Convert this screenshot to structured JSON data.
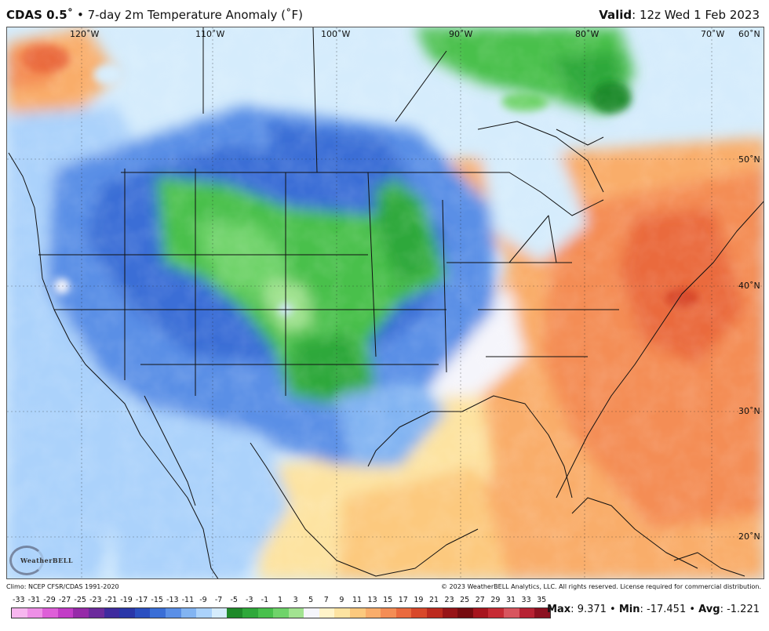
{
  "header": {
    "model": "CDAS 0.5˚",
    "bullet": "•",
    "product": "7-day 2m Temperature Anomaly (˚F)",
    "valid_label": "Valid",
    "valid_value": ": 12z Wed 1 Feb 2023"
  },
  "graticule": {
    "longitudes": [
      "120˚W",
      "110˚W",
      "100˚W",
      "90˚W",
      "80˚W",
      "70˚W",
      "60˚N"
    ],
    "latitudes": [
      "50˚N",
      "40˚N",
      "30˚N",
      "20˚N"
    ]
  },
  "logo_text": "WeatherBELL",
  "footer": {
    "climo": "Climo: NCEP CFSR/CDAS 1991-2020",
    "copyright": "© 2023 WeatherBELL Analytics, LLC. All rights reserved. License required for commercial distribution."
  },
  "scale": {
    "ticks": [
      "-33",
      "-31",
      "-29",
      "-27",
      "-25",
      "-23",
      "-21",
      "-19",
      "-17",
      "-15",
      "-13",
      "-11",
      "-9",
      "-7",
      "-5",
      "-3",
      "-1",
      "1",
      "3",
      "5",
      "7",
      "9",
      "11",
      "13",
      "15",
      "17",
      "19",
      "21",
      "23",
      "25",
      "27",
      "29",
      "31",
      "33",
      "35"
    ],
    "colors": [
      "#f7b6ef",
      "#ee8fe6",
      "#de5fd8",
      "#c23cc6",
      "#962aa8",
      "#6c2b9c",
      "#3f2b9e",
      "#2936a8",
      "#2a4fc0",
      "#3a6ed6",
      "#5a8fe6",
      "#82b4f2",
      "#abd2fb",
      "#d5ecfc",
      "#1f8a2a",
      "#2fa83a",
      "#48c04c",
      "#6fd36a",
      "#a2e391",
      "#f5f5fb",
      "#fff3c9",
      "#fde3a1",
      "#fcc97e",
      "#f9ad6b",
      "#f48d55",
      "#ea6a3e",
      "#d8482a",
      "#bc2a1e",
      "#971417",
      "#760c10",
      "#a7151e",
      "#c62b34",
      "#d8555e",
      "#b72233",
      "#8c1020"
    ]
  },
  "stats": {
    "max_label": "Max",
    "max_value": "9.371",
    "min_label": "Min",
    "min_value": "-17.451",
    "avg_label": "Avg",
    "avg_value": "-1.221"
  }
}
